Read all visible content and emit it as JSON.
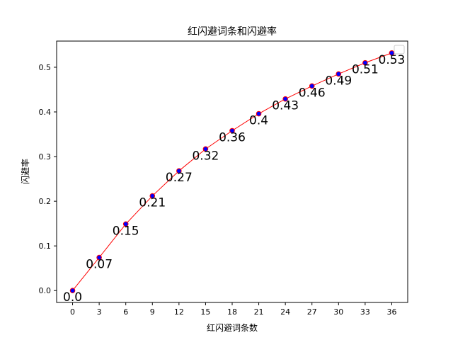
{
  "chart_data": {
    "type": "line",
    "title": "红闪避词条和闪避率",
    "xlabel": "红闪避词条数",
    "ylabel": "闪避率",
    "x": [
      0,
      3,
      6,
      9,
      12,
      15,
      18,
      21,
      24,
      27,
      30,
      33,
      36
    ],
    "series": [
      {
        "values": [
          0.0,
          0.074,
          0.149,
          0.212,
          0.268,
          0.317,
          0.358,
          0.396,
          0.429,
          0.458,
          0.485,
          0.51,
          0.532
        ],
        "labels": [
          "0.0",
          "0.07",
          "0.15",
          "0.21",
          "0.27",
          "0.32",
          "0.36",
          "0.4",
          "0.43",
          "0.46",
          "0.49",
          "0.51",
          "0.53"
        ],
        "line_color": "#ff0000",
        "marker_fill": "#0000ff",
        "marker_edge": "#ff0000"
      }
    ],
    "xticks": [
      0,
      3,
      6,
      9,
      12,
      15,
      18,
      21,
      24,
      27,
      30,
      33,
      36
    ],
    "xtick_labels": [
      "0",
      "3",
      "6",
      "9",
      "12",
      "15",
      "18",
      "21",
      "24",
      "27",
      "30",
      "33",
      "36"
    ],
    "yticks": [
      0.0,
      0.1,
      0.2,
      0.3,
      0.4,
      0.5
    ],
    "ytick_labels": [
      "0.0",
      "0.1",
      "0.2",
      "0.3",
      "0.4",
      "0.5"
    ],
    "xlim": [
      -1.8,
      37.8
    ],
    "ylim": [
      -0.0266,
      0.5586
    ],
    "grid": false,
    "legend": "upper-right (empty)"
  }
}
